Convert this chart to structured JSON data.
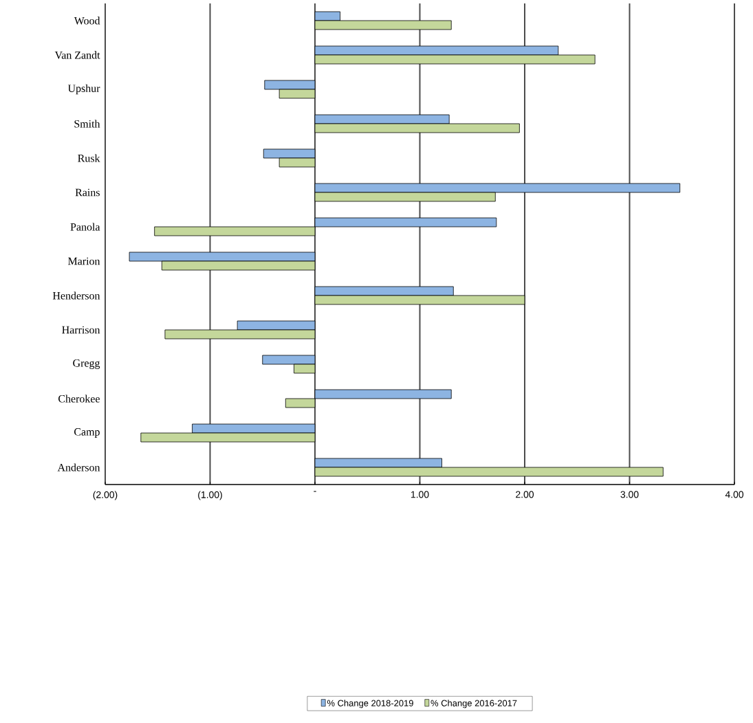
{
  "chart_data": {
    "type": "bar",
    "orientation": "horizontal",
    "categories": [
      "Wood",
      "Van Zandt",
      "Upshur",
      "Smith",
      "Rusk",
      "Rains",
      "Panola",
      "Marion",
      "Henderson",
      "Harrison",
      "Gregg",
      "Cherokee",
      "Camp",
      "Anderson"
    ],
    "series": [
      {
        "name": "% Change 2018-2019",
        "color": "#8db4e2",
        "values": [
          0.24,
          2.32,
          -0.48,
          1.28,
          -0.49,
          3.48,
          1.73,
          -1.77,
          1.32,
          -0.74,
          -0.5,
          1.3,
          -1.17,
          1.21
        ]
      },
      {
        "name": "% Change 2016-2017",
        "color": "#c4d79b",
        "values": [
          1.3,
          2.67,
          -0.34,
          1.95,
          -0.34,
          1.72,
          -1.53,
          -1.46,
          2.0,
          -1.43,
          -0.2,
          -0.28,
          -1.66,
          3.32
        ]
      }
    ],
    "xlim": [
      -2,
      4
    ],
    "xticks": [
      {
        "value": -2,
        "label": "(2.00)"
      },
      {
        "value": -1,
        "label": "(1.00)"
      },
      {
        "value": 0,
        "label": "-"
      },
      {
        "value": 1,
        "label": "1.00"
      },
      {
        "value": 2,
        "label": "2.00"
      },
      {
        "value": 3,
        "label": "3.00"
      },
      {
        "value": 4,
        "label": "4.00"
      }
    ],
    "grid": "x",
    "legend": "bottom"
  }
}
